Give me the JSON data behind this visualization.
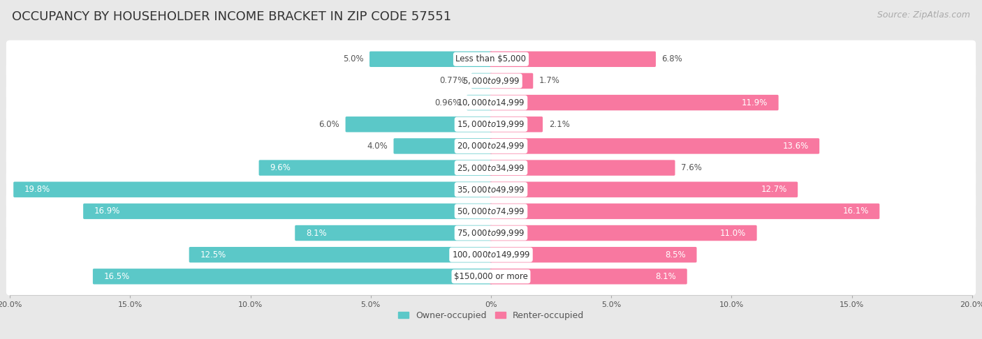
{
  "title": "OCCUPANCY BY HOUSEHOLDER INCOME BRACKET IN ZIP CODE 57551",
  "source": "Source: ZipAtlas.com",
  "categories": [
    "Less than $5,000",
    "$5,000 to $9,999",
    "$10,000 to $14,999",
    "$15,000 to $19,999",
    "$20,000 to $24,999",
    "$25,000 to $34,999",
    "$35,000 to $49,999",
    "$50,000 to $74,999",
    "$75,000 to $99,999",
    "$100,000 to $149,999",
    "$150,000 or more"
  ],
  "owner_values": [
    5.0,
    0.77,
    0.96,
    6.0,
    4.0,
    9.6,
    19.8,
    16.9,
    8.1,
    12.5,
    16.5
  ],
  "renter_values": [
    6.8,
    1.7,
    11.9,
    2.1,
    13.6,
    7.6,
    12.7,
    16.1,
    11.0,
    8.5,
    8.1
  ],
  "owner_color": "#5BC8C8",
  "renter_color": "#F878A0",
  "owner_label": "Owner-occupied",
  "renter_label": "Renter-occupied",
  "background_color": "#e8e8e8",
  "bar_background": "#ffffff",
  "xlim": 20.0,
  "title_fontsize": 13,
  "source_fontsize": 9,
  "label_fontsize": 8.5,
  "category_fontsize": 8.5
}
